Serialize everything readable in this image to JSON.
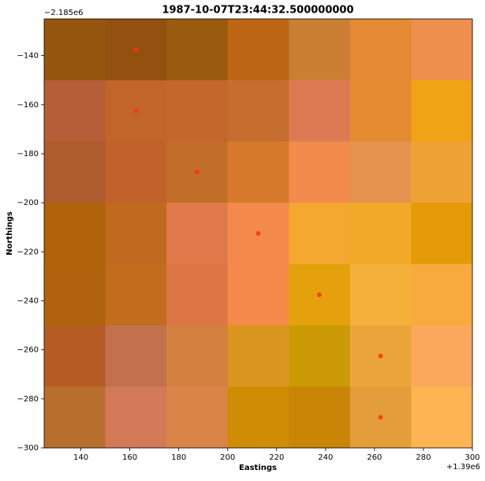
{
  "chart_data": {
    "type": "heatmap",
    "title": "1987-10-07T23:44:32.500000000",
    "x_label": "Eastings",
    "y_label": "Northings",
    "x_offset_label": "+1.39e6",
    "y_offset_label": "−2.185e6",
    "xlim": [
      125,
      300
    ],
    "ylim": [
      -300,
      -125
    ],
    "xticks": [
      140,
      160,
      180,
      200,
      220,
      240,
      260,
      280,
      300
    ],
    "yticks": [
      {
        "value": -140,
        "label": "−140"
      },
      {
        "value": -160,
        "label": "−160"
      },
      {
        "value": -180,
        "label": "−180"
      },
      {
        "value": -200,
        "label": "−200"
      },
      {
        "value": -220,
        "label": "−220"
      },
      {
        "value": -240,
        "label": "−240"
      },
      {
        "value": -260,
        "label": "−260"
      },
      {
        "value": -280,
        "label": "−280"
      },
      {
        "value": -300,
        "label": "−300"
      }
    ],
    "cell_colors": [
      [
        "#96560f",
        "#94500f",
        "#9a5a10",
        "#bd6714",
        "#cb7f33",
        "#e48a35",
        "#ee8f4e"
      ],
      [
        "#b55e38",
        "#c1652a",
        "#c4672c",
        "#c66e30",
        "#dc7b53",
        "#e48a30",
        "#f0a314"
      ],
      [
        "#ae5c2d",
        "#c0622a",
        "#c26d29",
        "#d87a2b",
        "#f28b4c",
        "#e5934f",
        "#eea233"
      ],
      [
        "#b0620b",
        "#bf6a1f",
        "#e07a4a",
        "#f38a4c",
        "#f4a82f",
        "#f1a927",
        "#e49908"
      ],
      [
        "#b0620d",
        "#c26c1e",
        "#dc7645",
        "#f68a4a",
        "#e5a10c",
        "#f4b03a",
        "#f8aa3c"
      ],
      [
        "#b45c23",
        "#c3714d",
        "#d48041",
        "#d9961f",
        "#cc9a04",
        "#eaa63a",
        "#fca85c"
      ],
      [
        "#b86f2d",
        "#d37957",
        "#da8448",
        "#d08c04",
        "#cb8506",
        "#e39e3b",
        "#feb453"
      ]
    ],
    "points": {
      "color": "#ff3010",
      "x": [
        162.5,
        162.5,
        187.5,
        212.5,
        237.5,
        262.5,
        262.5
      ],
      "y": [
        -137.5,
        -162.5,
        -187.5,
        -212.5,
        -237.5,
        -262.5,
        -287.5
      ]
    }
  }
}
